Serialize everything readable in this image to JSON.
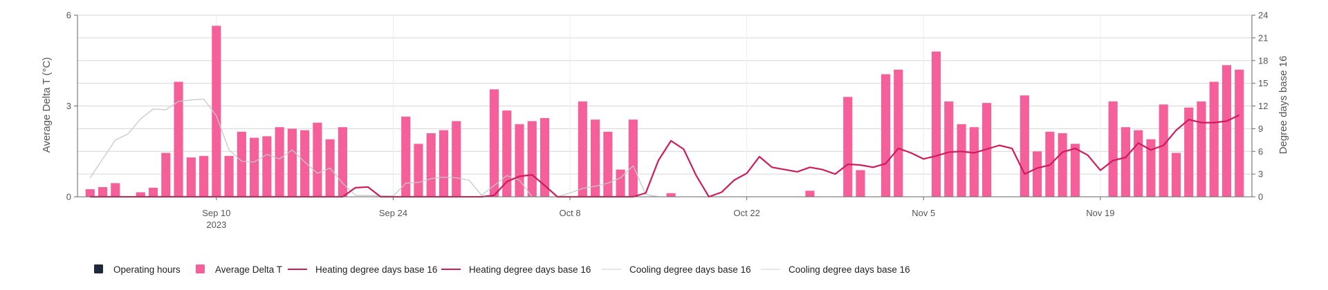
{
  "chart_data": {
    "type": "bar+line",
    "x_start": "2023-08-30",
    "x_end": "2023-12-01",
    "x_ticks": [
      {
        "date": "2023-09-10",
        "label": "Sep 10",
        "sublabel": "2023"
      },
      {
        "date": "2023-09-24",
        "label": "Sep 24",
        "sublabel": ""
      },
      {
        "date": "2023-10-08",
        "label": "Oct 8",
        "sublabel": ""
      },
      {
        "date": "2023-10-22",
        "label": "Oct 22",
        "sublabel": ""
      },
      {
        "date": "2023-11-05",
        "label": "Nov 5",
        "sublabel": ""
      },
      {
        "date": "2023-11-19",
        "label": "Nov 19",
        "sublabel": ""
      }
    ],
    "y_left": {
      "label": "Average Delta T (°C)",
      "ylim": [
        0,
        6
      ],
      "ticks": [
        "0",
        "3",
        "6"
      ]
    },
    "y_right": {
      "label": "Degree days base 16",
      "ylim": [
        0,
        24
      ],
      "ticks": [
        "0",
        "3",
        "6",
        "9",
        "12",
        "15",
        "18",
        "21",
        "24"
      ]
    },
    "grid": true,
    "legend_position": "bottom-left",
    "legend": [
      {
        "label": "Operating hours",
        "symbol": "square",
        "color": "#1e2a3a"
      },
      {
        "label": "Average Delta T",
        "symbol": "square",
        "color": "#f5609a"
      },
      {
        "label": "Heating degree days base 16",
        "symbol": "line",
        "color": "#d01a5c"
      },
      {
        "label": "Heating degree days base 16",
        "symbol": "line",
        "color": "#d01a5c"
      },
      {
        "label": "Cooling degree days base 16",
        "symbol": "line",
        "color": "#cccccc"
      },
      {
        "label": "Cooling degree days base 16",
        "symbol": "line",
        "color": "#cccccc"
      }
    ],
    "colors": {
      "bars": "#f5609a",
      "heating": "#d01a5c",
      "cooling": "#c8c8c8"
    },
    "series": [
      {
        "name": "Average Delta T",
        "type": "bar",
        "axis": "left",
        "points": [
          [
            "2023-08-31",
            0.25
          ],
          [
            "2023-09-01",
            0.32
          ],
          [
            "2023-09-02",
            0.45
          ],
          [
            "2023-09-04",
            0.15
          ],
          [
            "2023-09-05",
            0.3
          ],
          [
            "2023-09-06",
            1.45
          ],
          [
            "2023-09-07",
            3.8
          ],
          [
            "2023-09-08",
            1.3
          ],
          [
            "2023-09-09",
            1.35
          ],
          [
            "2023-09-10",
            5.65
          ],
          [
            "2023-09-11",
            1.35
          ],
          [
            "2023-09-12",
            2.15
          ],
          [
            "2023-09-13",
            1.95
          ],
          [
            "2023-09-14",
            2.0
          ],
          [
            "2023-09-15",
            2.3
          ],
          [
            "2023-09-16",
            2.25
          ],
          [
            "2023-09-17",
            2.2
          ],
          [
            "2023-09-18",
            2.45
          ],
          [
            "2023-09-19",
            1.9
          ],
          [
            "2023-09-20",
            2.3
          ],
          [
            "2023-09-25",
            2.65
          ],
          [
            "2023-09-26",
            1.75
          ],
          [
            "2023-09-27",
            2.1
          ],
          [
            "2023-09-28",
            2.2
          ],
          [
            "2023-09-29",
            2.5
          ],
          [
            "2023-10-02",
            3.55
          ],
          [
            "2023-10-03",
            2.85
          ],
          [
            "2023-10-04",
            2.4
          ],
          [
            "2023-10-05",
            2.5
          ],
          [
            "2023-10-06",
            2.6
          ],
          [
            "2023-10-09",
            3.15
          ],
          [
            "2023-10-10",
            2.55
          ],
          [
            "2023-10-11",
            2.15
          ],
          [
            "2023-10-12",
            0.9
          ],
          [
            "2023-10-13",
            2.55
          ],
          [
            "2023-10-16",
            0.12
          ],
          [
            "2023-10-27",
            0.2
          ],
          [
            "2023-10-30",
            3.3
          ],
          [
            "2023-10-31",
            0.88
          ],
          [
            "2023-11-02",
            4.05
          ],
          [
            "2023-11-03",
            4.2
          ],
          [
            "2023-11-06",
            4.8
          ],
          [
            "2023-11-07",
            3.15
          ],
          [
            "2023-11-08",
            2.4
          ],
          [
            "2023-11-09",
            2.3
          ],
          [
            "2023-11-10",
            3.1
          ],
          [
            "2023-11-13",
            3.35
          ],
          [
            "2023-11-14",
            1.5
          ],
          [
            "2023-11-15",
            2.15
          ],
          [
            "2023-11-16",
            2.1
          ],
          [
            "2023-11-17",
            1.75
          ],
          [
            "2023-11-20",
            3.15
          ],
          [
            "2023-11-21",
            2.3
          ],
          [
            "2023-11-22",
            2.2
          ],
          [
            "2023-11-23",
            1.9
          ],
          [
            "2023-11-24",
            3.05
          ],
          [
            "2023-11-25",
            1.45
          ],
          [
            "2023-11-26",
            2.95
          ],
          [
            "2023-11-27",
            3.15
          ],
          [
            "2023-11-28",
            3.8
          ],
          [
            "2023-11-29",
            4.35
          ],
          [
            "2023-11-30",
            4.2
          ]
        ]
      },
      {
        "name": "Heating degree days base 16",
        "type": "line",
        "axis": "right",
        "points": [
          [
            "2023-08-31",
            0
          ],
          [
            "2023-09-20",
            0
          ],
          [
            "2023-09-21",
            1.2
          ],
          [
            "2023-09-22",
            1.3
          ],
          [
            "2023-09-23",
            0
          ],
          [
            "2023-10-01",
            0
          ],
          [
            "2023-10-02",
            0.2
          ],
          [
            "2023-10-03",
            2
          ],
          [
            "2023-10-04",
            2.7
          ],
          [
            "2023-10-05",
            2.9
          ],
          [
            "2023-10-06",
            1.5
          ],
          [
            "2023-10-07",
            0
          ],
          [
            "2023-10-13",
            0
          ],
          [
            "2023-10-14",
            0.5
          ],
          [
            "2023-10-15",
            4.8
          ],
          [
            "2023-10-16",
            7.4
          ],
          [
            "2023-10-17",
            6.3
          ],
          [
            "2023-10-18",
            2.8
          ],
          [
            "2023-10-19",
            0
          ],
          [
            "2023-10-20",
            0.6
          ],
          [
            "2023-10-21",
            2.2
          ],
          [
            "2023-10-22",
            3.1
          ],
          [
            "2023-10-23",
            5.3
          ],
          [
            "2023-10-24",
            3.9
          ],
          [
            "2023-10-25",
            3.6
          ],
          [
            "2023-10-26",
            3.3
          ],
          [
            "2023-10-27",
            3.9
          ],
          [
            "2023-10-28",
            3.6
          ],
          [
            "2023-10-29",
            3.0
          ],
          [
            "2023-10-30",
            4.3
          ],
          [
            "2023-10-31",
            4.2
          ],
          [
            "2023-11-01",
            3.9
          ],
          [
            "2023-11-02",
            4.4
          ],
          [
            "2023-11-03",
            6.4
          ],
          [
            "2023-11-04",
            5.8
          ],
          [
            "2023-11-05",
            5.0
          ],
          [
            "2023-11-06",
            5.4
          ],
          [
            "2023-11-07",
            5.9
          ],
          [
            "2023-11-08",
            6.0
          ],
          [
            "2023-11-09",
            5.8
          ],
          [
            "2023-11-10",
            6.3
          ],
          [
            "2023-11-11",
            6.8
          ],
          [
            "2023-11-12",
            6.4
          ],
          [
            "2023-11-13",
            3.0
          ],
          [
            "2023-11-14",
            3.8
          ],
          [
            "2023-11-15",
            4.2
          ],
          [
            "2023-11-16",
            5.9
          ],
          [
            "2023-11-17",
            6.4
          ],
          [
            "2023-11-18",
            5.5
          ],
          [
            "2023-11-19",
            3.5
          ],
          [
            "2023-11-20",
            4.8
          ],
          [
            "2023-11-21",
            5.2
          ],
          [
            "2023-11-22",
            7.1
          ],
          [
            "2023-11-23",
            6.2
          ],
          [
            "2023-11-24",
            6.8
          ],
          [
            "2023-11-25",
            8.8
          ],
          [
            "2023-11-26",
            10.2
          ],
          [
            "2023-11-27",
            9.8
          ],
          [
            "2023-11-28",
            9.8
          ],
          [
            "2023-11-29",
            10.0
          ],
          [
            "2023-11-30",
            10.8
          ]
        ]
      },
      {
        "name": "Cooling degree days base 16",
        "type": "line",
        "axis": "right",
        "points": [
          [
            "2023-08-31",
            2.5
          ],
          [
            "2023-09-01",
            5.0
          ],
          [
            "2023-09-02",
            7.5
          ],
          [
            "2023-09-03",
            8.3
          ],
          [
            "2023-09-04",
            10.3
          ],
          [
            "2023-09-05",
            11.6
          ],
          [
            "2023-09-06",
            11.5
          ],
          [
            "2023-09-07",
            12.6
          ],
          [
            "2023-09-08",
            12.8
          ],
          [
            "2023-09-09",
            12.9
          ],
          [
            "2023-09-10",
            10.7
          ],
          [
            "2023-09-11",
            6.2
          ],
          [
            "2023-09-12",
            4.7
          ],
          [
            "2023-09-13",
            4.6
          ],
          [
            "2023-09-14",
            5.6
          ],
          [
            "2023-09-15",
            5.0
          ],
          [
            "2023-09-16",
            6.2
          ],
          [
            "2023-09-17",
            4.6
          ],
          [
            "2023-09-18",
            3.1
          ],
          [
            "2023-09-19",
            3.8
          ],
          [
            "2023-09-20",
            1.8
          ],
          [
            "2023-09-21",
            0.2
          ],
          [
            "2023-09-24",
            0.1
          ],
          [
            "2023-09-25",
            1.8
          ],
          [
            "2023-09-26",
            1.9
          ],
          [
            "2023-09-27",
            2.4
          ],
          [
            "2023-09-28",
            2.6
          ],
          [
            "2023-09-29",
            2.5
          ],
          [
            "2023-09-30",
            2.2
          ],
          [
            "2023-10-01",
            0.2
          ],
          [
            "2023-10-02",
            1.5
          ],
          [
            "2023-10-03",
            2.8
          ],
          [
            "2023-10-04",
            2.2
          ],
          [
            "2023-10-05",
            0
          ],
          [
            "2023-10-07",
            0
          ],
          [
            "2023-10-08",
            0.5
          ],
          [
            "2023-10-09",
            1.1
          ],
          [
            "2023-10-10",
            1.4
          ],
          [
            "2023-10-11",
            1.8
          ],
          [
            "2023-10-12",
            2.5
          ],
          [
            "2023-10-13",
            4.1
          ],
          [
            "2023-10-14",
            0.3
          ],
          [
            "2023-10-15",
            0
          ]
        ]
      }
    ]
  }
}
